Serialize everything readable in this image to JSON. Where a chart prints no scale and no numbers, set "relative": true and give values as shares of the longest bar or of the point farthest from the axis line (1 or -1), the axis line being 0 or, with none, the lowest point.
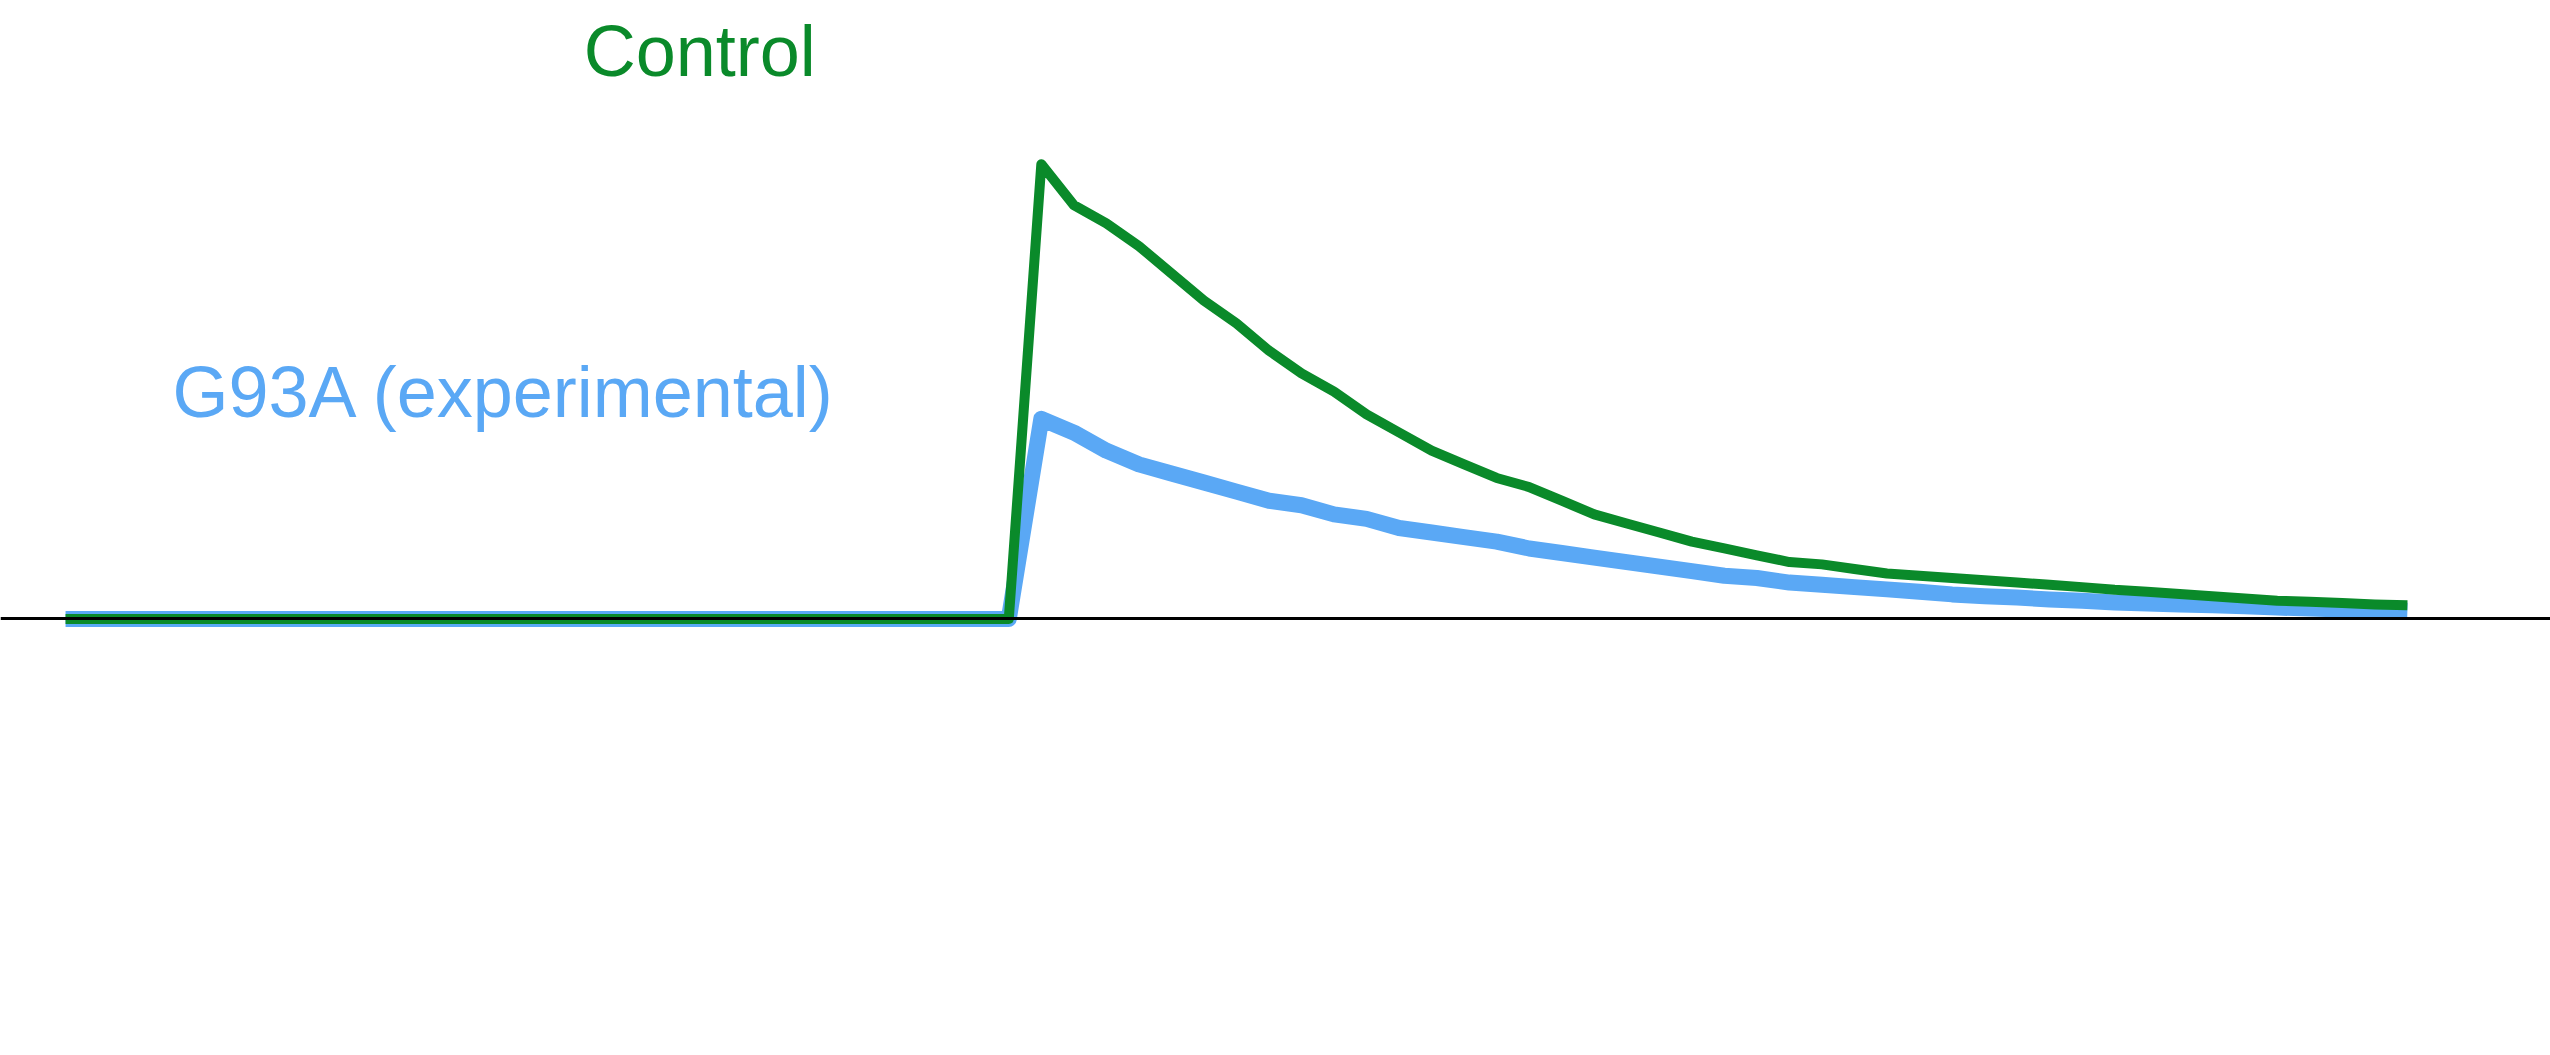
{
  "chart_data": {
    "type": "line",
    "relative": true,
    "legend": false,
    "grid": false,
    "tick_labels": false,
    "line_style": "solid",
    "categories": [
      null,
      null,
      null,
      null,
      null,
      null,
      null,
      null,
      null,
      null,
      null,
      null,
      null,
      null,
      null,
      null,
      null,
      null,
      null,
      null,
      null,
      null,
      null,
      null,
      null,
      null,
      null,
      null,
      null,
      null,
      null,
      null,
      null,
      null,
      null,
      null,
      null,
      null,
      null,
      null,
      null,
      null,
      null,
      null,
      null,
      null,
      null,
      null,
      null,
      null,
      null,
      null,
      null,
      null,
      null,
      null,
      null,
      null,
      null,
      null,
      null,
      null,
      null,
      null,
      null,
      null,
      null,
      null,
      null,
      null,
      null,
      null,
      null
    ],
    "series": [
      {
        "name": "Control",
        "color": "#0a8a2a",
        "values": [
          0,
          0,
          0,
          0,
          0,
          0,
          0,
          0,
          0,
          0,
          0,
          0,
          0,
          0,
          0,
          0,
          0,
          0,
          0,
          0,
          0,
          0,
          0,
          0,
          0,
          0,
          0,
          0,
          0,
          0,
          1,
          0.91,
          0.87,
          0.82,
          0.76,
          0.7,
          0.65,
          0.59,
          0.54,
          0.5,
          0.45,
          0.41,
          0.37,
          0.34,
          0.31,
          0.29,
          0.26,
          0.23,
          0.21,
          0.19,
          0.17,
          0.155,
          0.14,
          0.125,
          0.12,
          0.11,
          0.1,
          0.095,
          0.09,
          0.085,
          0.08,
          0.075,
          0.07,
          0.064,
          0.06,
          0.055,
          0.05,
          0.045,
          0.04,
          0.038,
          0.035,
          0.032,
          0.03
        ]
      },
      {
        "name": "G93A (experimental)",
        "color": "#5aa8f5",
        "values": [
          0,
          0,
          0,
          0,
          0,
          0,
          0,
          0,
          0,
          0,
          0,
          0,
          0,
          0,
          0,
          0,
          0,
          0,
          0,
          0,
          0,
          0,
          0,
          0,
          0,
          0,
          0,
          0,
          0,
          0,
          0.44,
          0.41,
          0.37,
          0.34,
          0.32,
          0.3,
          0.28,
          0.26,
          0.25,
          0.23,
          0.22,
          0.2,
          0.19,
          0.18,
          0.17,
          0.155,
          0.145,
          0.135,
          0.125,
          0.115,
          0.105,
          0.095,
          0.09,
          0.08,
          0.075,
          0.07,
          0.065,
          0.06,
          0.054,
          0.05,
          0.047,
          0.043,
          0.04,
          0.036,
          0.034,
          0.032,
          0.03,
          0.028,
          0.025,
          0.023,
          0.021,
          0.02,
          0.018
        ]
      }
    ]
  }
}
